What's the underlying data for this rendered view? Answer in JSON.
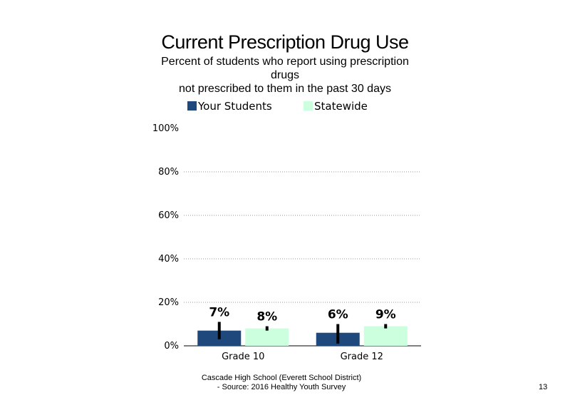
{
  "chart_data": {
    "type": "bar",
    "title": "Current Prescription Drug Use",
    "subtitle_lines": [
      "Percent of students  who report using prescription",
      "drugs",
      "not prescribed to them in the past 30 days"
    ],
    "categories": [
      "Grade 10",
      "Grade 12"
    ],
    "series": [
      {
        "name": "Your Students",
        "values": [
          7,
          6
        ],
        "labels": [
          "7%",
          "6%"
        ],
        "error_low": [
          3,
          1
        ],
        "error_high": [
          11,
          10
        ],
        "color": "#1f497d"
      },
      {
        "name": "Statewide",
        "values": [
          8,
          9
        ],
        "labels": [
          "8%",
          "9%"
        ],
        "error_low": [
          7,
          8
        ],
        "error_high": [
          9,
          10
        ],
        "color": "#ccffdd"
      }
    ],
    "yticks": [
      "0%",
      "20%",
      "40%",
      "60%",
      "80%",
      "100%"
    ],
    "ylim": [
      0,
      100
    ],
    "grid": true,
    "legend": "top"
  },
  "footer": {
    "line1": "Cascade High  School (Everett School District)",
    "line2": "- Source: 2016 Healthy  Youth Survey"
  },
  "page_number": "13"
}
